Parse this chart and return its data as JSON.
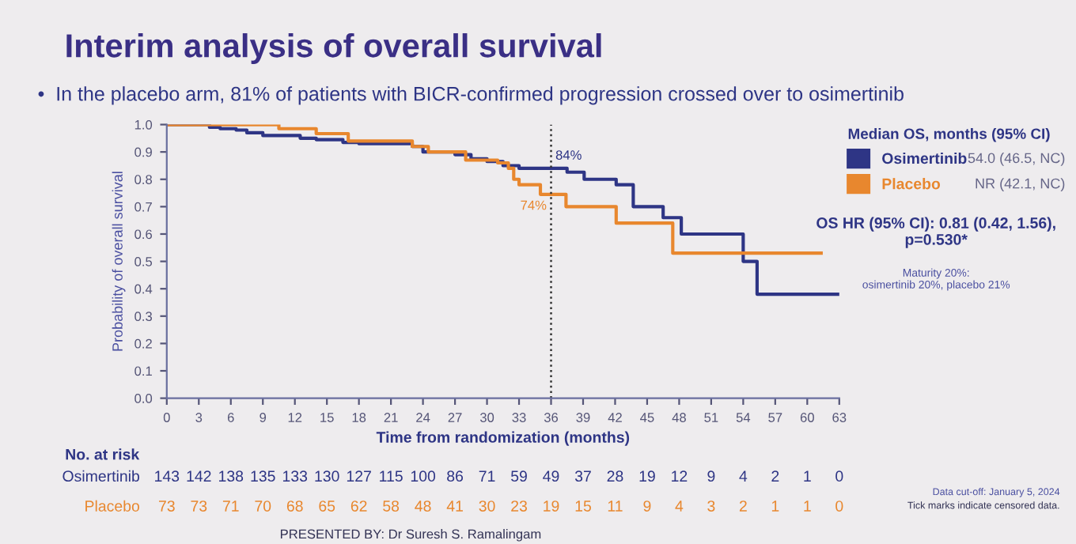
{
  "chart_data": {
    "type": "step",
    "title": "Interim analysis of overall survival",
    "subtitle": "•  In the placebo arm, 81% of patients with BICR-confirmed progression crossed over to osimertinib",
    "xlabel": "Time from randomization (months)",
    "ylabel": "Probability of overall survival",
    "xlim": [
      0,
      63
    ],
    "ylim": [
      0,
      1
    ],
    "xticks": [
      0,
      3,
      6,
      9,
      12,
      15,
      18,
      21,
      24,
      27,
      30,
      33,
      36,
      39,
      42,
      45,
      48,
      51,
      54,
      57,
      60,
      63
    ],
    "yticks": [
      {
        "value": 0,
        "label": "0.0"
      },
      {
        "value": 0.1,
        "label": "0.1"
      },
      {
        "value": 0.2,
        "label": "0.2"
      },
      {
        "value": 0.3,
        "label": "0.3"
      },
      {
        "value": 0.4,
        "label": "0.4"
      },
      {
        "value": 0.5,
        "label": "0.5"
      },
      {
        "value": 0.6,
        "label": "0.6"
      },
      {
        "value": 0.7,
        "label": "0.7"
      },
      {
        "value": 0.8,
        "label": "0.8"
      },
      {
        "value": 0.9,
        "label": "0.9"
      },
      {
        "value": 1,
        "label": "1.0"
      }
    ],
    "grid": false,
    "legend": "right",
    "legend_title": "Median OS, months (95% CI)",
    "line_style": "solid",
    "series": [
      {
        "name": "Osimertinib",
        "color": "#2e3585",
        "x": [
          0,
          4,
          5,
          6.5,
          7.5,
          9,
          12.5,
          14,
          16.5,
          18,
          23,
          24,
          27,
          28.5,
          30,
          31.5,
          33,
          37.5,
          39.1,
          42.1,
          43.7,
          46.5,
          48.2,
          54,
          55.3,
          63
        ],
        "values": [
          1.0,
          0.99,
          0.985,
          0.98,
          0.97,
          0.96,
          0.95,
          0.945,
          0.935,
          0.93,
          0.92,
          0.9,
          0.89,
          0.875,
          0.865,
          0.85,
          0.84,
          0.826,
          0.8,
          0.78,
          0.7,
          0.66,
          0.6,
          0.5,
          0.38,
          0.38
        ]
      },
      {
        "name": "Placebo",
        "color": "#e8872e",
        "x": [
          0,
          10.5,
          14,
          17,
          23,
          24.5,
          28,
          31,
          32,
          32.5,
          33,
          35,
          37.4,
          42.1,
          47.4,
          61.3
        ],
        "values": [
          1.0,
          0.985,
          0.967,
          0.94,
          0.92,
          0.9,
          0.87,
          0.86,
          0.84,
          0.8,
          0.78,
          0.745,
          0.7,
          0.64,
          0.53,
          0.53
        ]
      }
    ],
    "ref_lines": [
      {
        "axis": "x",
        "value": 36,
        "line_style": "dotted",
        "color": "#333333"
      }
    ],
    "annotations": [
      "No. at risk",
      "Osimertinib",
      "143 142 138 135 133 130 127 115 100 86 71 59 49 37 28 19 12 9 4 2 1 0",
      "Placebo",
      "73 73 71 70 68 65 62 58 48 41 30 23 19 15 11 9 4 3 2 1 1 0",
      "54.0 (46.5, NC)",
      "NR (42.1, NC)",
      "OS HR (95% CI): 0.81 (0.42, 1.56),\np=0.530*",
      "Maturity 20%:\nosimertinib 20%, placebo 21%",
      "PRESENTED BY: Dr Suresh S. Ramalingam",
      "Data cut-off: January 5, 2024",
      "Tick marks indicate censored data.",
      {
        "text": "84%",
        "x": 36,
        "y": 0.84
      },
      {
        "text": "74%",
        "x": 36,
        "y": 0.745
      }
    ]
  }
}
